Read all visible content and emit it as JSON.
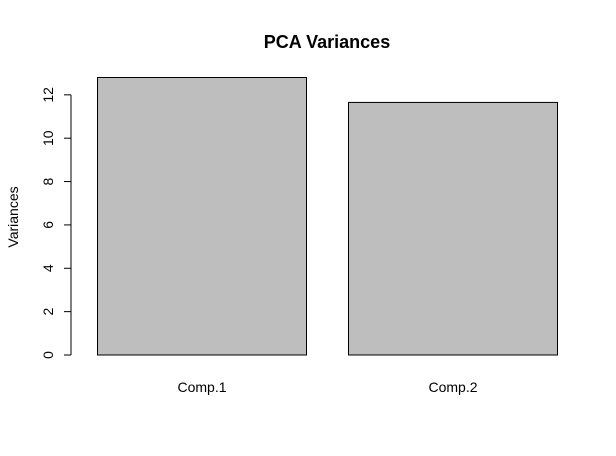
{
  "chart_data": {
    "type": "bar",
    "title": "PCA Variances",
    "xlabel": "",
    "ylabel": "Variances",
    "categories": [
      "Comp.1",
      "Comp.2"
    ],
    "values": [
      12.8,
      11.65
    ],
    "ylim": [
      0,
      12
    ],
    "yticks": [
      0,
      2,
      4,
      6,
      8,
      10,
      12
    ],
    "ytick_labels": [
      "0",
      "2",
      "4",
      "6",
      "8",
      "10",
      "12"
    ],
    "bar_color": "#bebebe",
    "grid": false,
    "legend": "none"
  }
}
